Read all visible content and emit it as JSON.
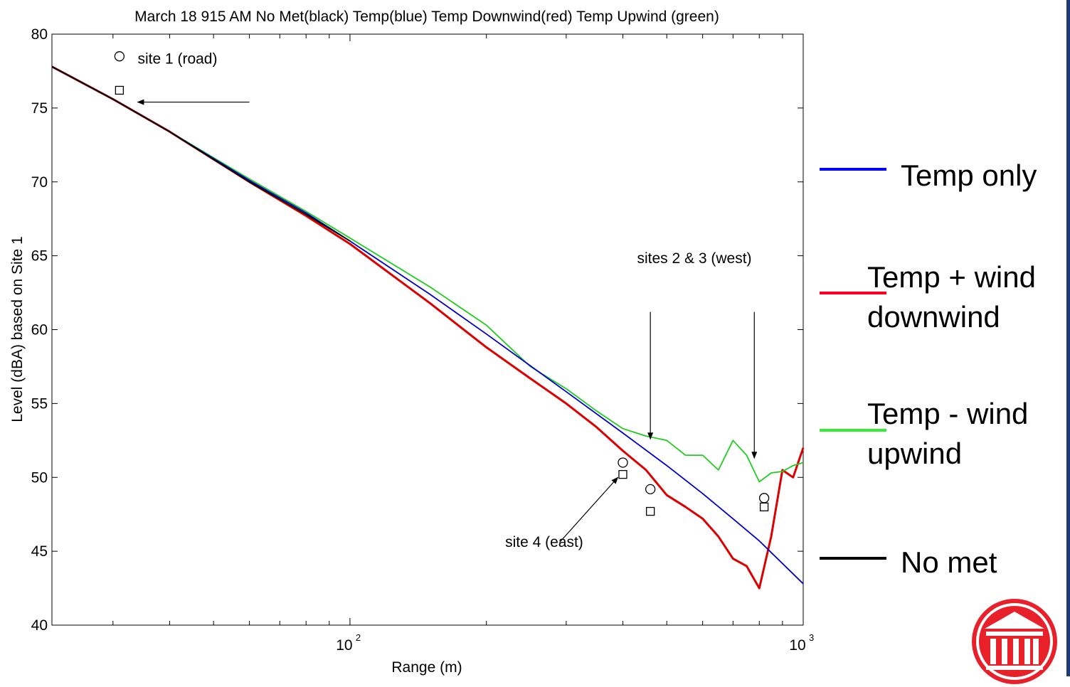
{
  "chart_data": {
    "type": "line",
    "title": "March 18 915 AM No Met(black) Temp(blue) Temp Downwind(red) Temp Upwind (green)",
    "xlabel": "Range (m)",
    "ylabel": "Level (dBA) based on Site 1",
    "xscale": "log",
    "xlim": [
      22,
      1000
    ],
    "ylim": [
      40,
      80
    ],
    "yticks": [
      40,
      45,
      50,
      55,
      60,
      65,
      70,
      75,
      80
    ],
    "ytick_labels": [
      "40",
      "45",
      "50",
      "55",
      "60",
      "65",
      "70",
      "75",
      "80"
    ],
    "xtick_labels": [
      {
        "value": 100,
        "base": "10",
        "exp": "2"
      },
      {
        "value": 1000,
        "base": "10",
        "exp": "3"
      }
    ],
    "grid": false,
    "series": [
      {
        "name": "Temp(blue)",
        "color": "#0000cc",
        "x": [
          22,
          30,
          40,
          60,
          80,
          100,
          150,
          200,
          300,
          400,
          500,
          600,
          700,
          800,
          1000
        ],
        "y": [
          77.8,
          75.6,
          73.4,
          70.1,
          67.9,
          66.0,
          62.4,
          59.7,
          55.8,
          53.0,
          50.8,
          48.9,
          47.2,
          45.7,
          42.8
        ]
      },
      {
        "name": "Temp Downwind(red)",
        "color": "#dd0000",
        "x": [
          22,
          30,
          40,
          60,
          80,
          100,
          150,
          200,
          250,
          300,
          350,
          400,
          450,
          500,
          550,
          600,
          650,
          700,
          750,
          800,
          850,
          900,
          950,
          1000
        ],
        "y": [
          77.8,
          75.6,
          73.4,
          70.0,
          67.7,
          65.8,
          61.8,
          58.8,
          56.7,
          55.0,
          53.4,
          51.8,
          50.5,
          48.8,
          48.0,
          47.2,
          46.0,
          44.5,
          44.0,
          42.5,
          46.0,
          50.5,
          50.0,
          52.0
        ]
      },
      {
        "name": "Temp Upwind (green)",
        "color": "#22cc22",
        "x": [
          22,
          30,
          40,
          60,
          80,
          100,
          150,
          200,
          250,
          300,
          350,
          400,
          450,
          500,
          550,
          600,
          650,
          700,
          750,
          800,
          850,
          900,
          950,
          1000
        ],
        "y": [
          77.8,
          75.6,
          73.4,
          70.2,
          68.0,
          66.2,
          62.9,
          60.3,
          57.5,
          56.0,
          54.5,
          53.3,
          52.8,
          52.5,
          51.5,
          51.5,
          50.5,
          52.5,
          51.5,
          49.7,
          50.3,
          50.4,
          50.8,
          51.0
        ]
      },
      {
        "name": "No Met(black)",
        "color": "#000000",
        "x": [
          22,
          30,
          40,
          60,
          80,
          100
        ],
        "y": [
          77.8,
          75.6,
          73.4,
          70.0,
          67.8,
          66.0
        ]
      }
    ],
    "markers": {
      "circles": [
        {
          "x": 31,
          "y": 78.5
        },
        {
          "x": 400,
          "y": 51.0
        },
        {
          "x": 460,
          "y": 49.2
        },
        {
          "x": 820,
          "y": 48.6
        }
      ],
      "squares": [
        {
          "x": 31,
          "y": 76.2
        },
        {
          "x": 400,
          "y": 50.2
        },
        {
          "x": 460,
          "y": 47.7
        },
        {
          "x": 820,
          "y": 48.0
        }
      ]
    },
    "annotations": [
      {
        "text": "site 1 (road)",
        "text_x": 34,
        "text_y": 78
      },
      {
        "text": "sites 2 & 3 (west)",
        "text_x": 430,
        "text_y": 64.5
      },
      {
        "text": "site 4 (east)",
        "text_x": 220,
        "text_y": 45.3
      }
    ],
    "arrows": [
      {
        "from": [
          60,
          75.4
        ],
        "to": [
          34,
          75.4
        ]
      },
      {
        "from": [
          460,
          61.2
        ],
        "to": [
          460,
          52.6
        ]
      },
      {
        "from": [
          780,
          61.2
        ],
        "to": [
          780,
          51.3
        ]
      },
      {
        "from": [
          290,
          45.6
        ],
        "to": [
          390,
          50
        ]
      }
    ]
  },
  "legend": {
    "items": [
      {
        "label": "Temp only",
        "color": "#0000ff"
      },
      {
        "label": "Temp + wind",
        "label2": "downwind",
        "color": "#ff0022"
      },
      {
        "label": "Temp - wind",
        "label2": "upwind",
        "color": "#33ee33"
      },
      {
        "label": "No met",
        "color": "#000000"
      }
    ]
  },
  "logo": {
    "name": "building-logo",
    "color": "#e8202a"
  }
}
